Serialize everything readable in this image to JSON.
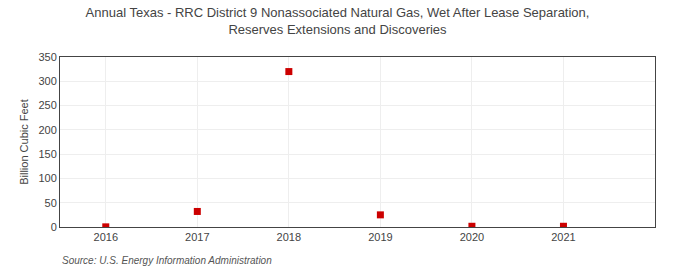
{
  "chart_data": {
    "type": "scatter",
    "title": "Annual Texas - RRC District 9 Nonassociated Natural Gas, Wet After Lease Separation,\nReserves Extensions and Discoveries",
    "ylabel": "Billion Cubic Feet",
    "annotations": [
      "Source: U.S. Energy Information Administration"
    ],
    "x": [
      2016,
      2017,
      2018,
      2019,
      2020,
      2021
    ],
    "values": [
      0.3,
      32.0,
      320.0,
      25.0,
      1.5,
      1.5
    ],
    "color": "#cc0000",
    "marker": "square",
    "xlim": [
      2015.5,
      2022.0
    ],
    "xticks": [
      2016,
      2017,
      2018,
      2019,
      2020,
      2021
    ],
    "ylim": [
      0,
      350
    ],
    "yticks": [
      0,
      50,
      100,
      150,
      200,
      250,
      300,
      350
    ],
    "grid": true
  }
}
